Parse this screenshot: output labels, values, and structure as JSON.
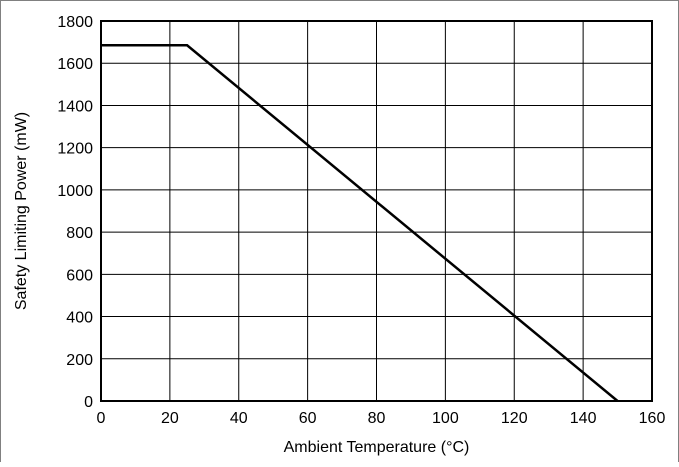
{
  "chart_data": {
    "type": "line",
    "xlabel": "Ambient Temperature (°C)",
    "ylabel": "Safety Limiting Power (mW)",
    "xlim": [
      0,
      160
    ],
    "ylim": [
      0,
      1800
    ],
    "xticks": [
      0,
      20,
      40,
      60,
      80,
      100,
      120,
      140,
      160
    ],
    "yticks": [
      0,
      200,
      400,
      600,
      800,
      1000,
      1200,
      1400,
      1600,
      1800
    ],
    "grid": true,
    "series": [
      {
        "x": [
          0,
          25,
          150
        ],
        "y": [
          1685,
          1685,
          0
        ]
      }
    ]
  }
}
